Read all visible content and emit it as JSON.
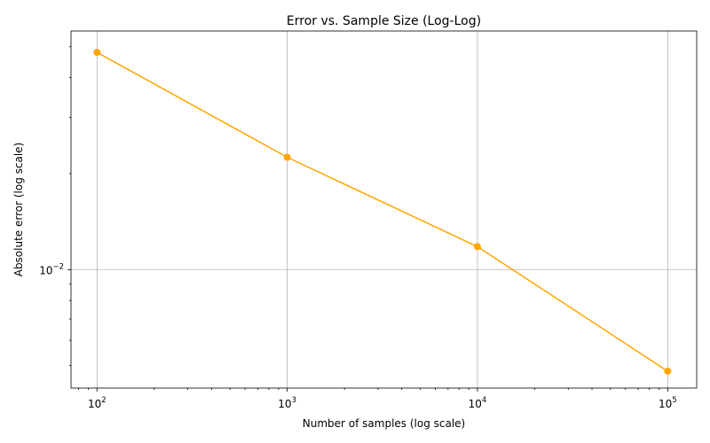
{
  "chart_data": {
    "type": "line",
    "title": "Error vs. Sample Size (Log-Log)",
    "xlabel": "Number of samples (log scale)",
    "ylabel": "Absolute error (log scale)",
    "xscale": "log",
    "yscale": "log",
    "grid": true,
    "x": [
      100,
      1000,
      10000,
      100000
    ],
    "series": [
      {
        "color": "#ffa500",
        "marker": "circle",
        "values": [
          0.048,
          0.0225,
          0.0118,
          0.0048
        ]
      }
    ],
    "xticks": [
      {
        "value": 100,
        "base": "10",
        "exp": "2"
      },
      {
        "value": 1000,
        "base": "10",
        "exp": "3"
      },
      {
        "value": 10000,
        "base": "10",
        "exp": "4"
      },
      {
        "value": 100000,
        "base": "10",
        "exp": "5"
      }
    ],
    "yticks": [
      {
        "value": 0.01,
        "base": "10",
        "exp": "−2"
      }
    ],
    "xlim": [
      73,
      142000
    ],
    "ylim": [
      0.00425,
      0.056
    ]
  }
}
